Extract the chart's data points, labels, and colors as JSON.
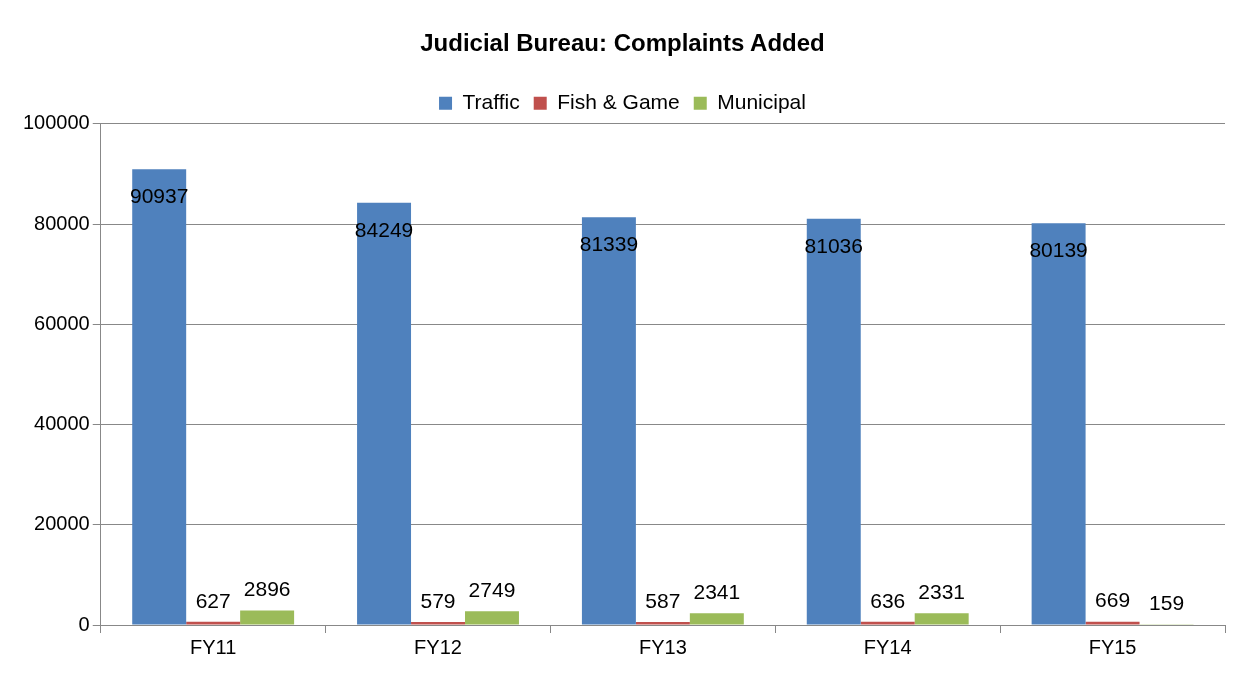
{
  "chart_data": {
    "type": "bar",
    "title": "Judicial Bureau: Complaints Added",
    "categories": [
      "FY11",
      "FY12",
      "FY13",
      "FY14",
      "FY15"
    ],
    "series": [
      {
        "name": "Traffic",
        "color": "#4f81bd",
        "values": [
          90937,
          84249,
          81339,
          81036,
          80139
        ]
      },
      {
        "name": "Fish & Game",
        "color": "#c0504d",
        "values": [
          627,
          579,
          587,
          636,
          669
        ]
      },
      {
        "name": "Municipal",
        "color": "#9bbb59",
        "values": [
          2896,
          2749,
          2341,
          2331,
          159
        ]
      }
    ],
    "ylim": [
      0,
      100000
    ],
    "yticks": [
      0,
      20000,
      40000,
      60000,
      80000,
      100000
    ],
    "grid": "y",
    "legend": "top",
    "data_labels": true
  }
}
